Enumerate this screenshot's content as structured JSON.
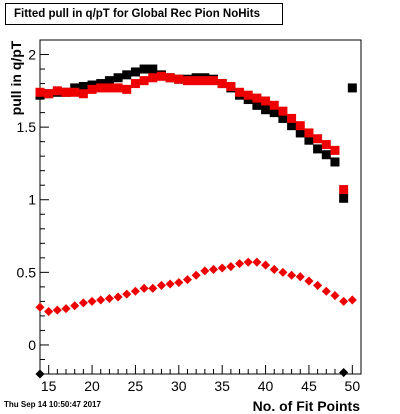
{
  "stamp": "Thu Sep 14 10:50:47 2017",
  "chart_data": {
    "type": "scatter",
    "title": "Fitted pull in q/pT  for Global Rec Pion NoHits",
    "xlabel": "No. of Fit Points",
    "ylabel": "pull in q/pT",
    "xlim": [
      14,
      51
    ],
    "ylim": [
      -0.2,
      2.1
    ],
    "x_ticks": [
      "15",
      "20",
      "25",
      "30",
      "35",
      "40",
      "45",
      "50"
    ],
    "y_ticks": [
      "0",
      "0.5",
      "1",
      "1.5",
      "2"
    ],
    "grid": false,
    "legend": "none",
    "colors": {
      "black_series": "#000000",
      "red_series": "#ee0000"
    },
    "series": [
      {
        "marker": "square",
        "color": "#000000",
        "points": [
          [
            14,
            1.72
          ],
          [
            15,
            1.73
          ],
          [
            16,
            1.74
          ],
          [
            17,
            1.74
          ],
          [
            18,
            1.77
          ],
          [
            19,
            1.78
          ],
          [
            20,
            1.79
          ],
          [
            21,
            1.8
          ],
          [
            22,
            1.82
          ],
          [
            23,
            1.84
          ],
          [
            24,
            1.86
          ],
          [
            25,
            1.88
          ],
          [
            26,
            1.9
          ],
          [
            27,
            1.9
          ],
          [
            28,
            1.86
          ],
          [
            29,
            1.84
          ],
          [
            30,
            1.83
          ],
          [
            31,
            1.83
          ],
          [
            32,
            1.84
          ],
          [
            33,
            1.84
          ],
          [
            34,
            1.83
          ],
          [
            35,
            1.8
          ],
          [
            36,
            1.77
          ],
          [
            37,
            1.72
          ],
          [
            38,
            1.69
          ],
          [
            39,
            1.65
          ],
          [
            40,
            1.62
          ],
          [
            41,
            1.6
          ],
          [
            42,
            1.56
          ],
          [
            43,
            1.51
          ],
          [
            44,
            1.46
          ],
          [
            45,
            1.41
          ],
          [
            46,
            1.35
          ],
          [
            47,
            1.31
          ],
          [
            48,
            1.26
          ],
          [
            49,
            1.01
          ],
          [
            50,
            1.77
          ]
        ]
      },
      {
        "marker": "square",
        "color": "#ee0000",
        "points": [
          [
            14,
            1.74
          ],
          [
            15,
            1.73
          ],
          [
            16,
            1.75
          ],
          [
            17,
            1.74
          ],
          [
            18,
            1.74
          ],
          [
            19,
            1.73
          ],
          [
            20,
            1.76
          ],
          [
            21,
            1.77
          ],
          [
            22,
            1.77
          ],
          [
            23,
            1.77
          ],
          [
            24,
            1.76
          ],
          [
            25,
            1.8
          ],
          [
            26,
            1.82
          ],
          [
            27,
            1.84
          ],
          [
            28,
            1.85
          ],
          [
            29,
            1.84
          ],
          [
            30,
            1.83
          ],
          [
            31,
            1.82
          ],
          [
            32,
            1.82
          ],
          [
            33,
            1.82
          ],
          [
            34,
            1.82
          ],
          [
            35,
            1.8
          ],
          [
            36,
            1.78
          ],
          [
            37,
            1.74
          ],
          [
            38,
            1.72
          ],
          [
            39,
            1.7
          ],
          [
            40,
            1.68
          ],
          [
            41,
            1.65
          ],
          [
            42,
            1.61
          ],
          [
            43,
            1.56
          ],
          [
            44,
            1.51
          ],
          [
            45,
            1.46
          ],
          [
            46,
            1.42
          ],
          [
            47,
            1.38
          ],
          [
            48,
            1.34
          ],
          [
            49,
            1.07
          ]
        ]
      },
      {
        "marker": "circle",
        "color": "#ee0000",
        "points": [
          [
            14,
            0.26
          ],
          [
            15,
            0.23
          ],
          [
            16,
            0.24
          ],
          [
            17,
            0.25
          ],
          [
            18,
            0.27
          ],
          [
            19,
            0.29
          ],
          [
            20,
            0.3
          ],
          [
            21,
            0.31
          ],
          [
            22,
            0.32
          ],
          [
            23,
            0.33
          ],
          [
            24,
            0.35
          ],
          [
            25,
            0.37
          ],
          [
            26,
            0.39
          ],
          [
            27,
            0.39
          ],
          [
            28,
            0.41
          ],
          [
            29,
            0.42
          ],
          [
            30,
            0.43
          ],
          [
            31,
            0.45
          ],
          [
            32,
            0.48
          ],
          [
            33,
            0.51
          ],
          [
            34,
            0.52
          ],
          [
            35,
            0.53
          ],
          [
            36,
            0.54
          ],
          [
            37,
            0.56
          ],
          [
            38,
            0.57
          ],
          [
            39,
            0.57
          ],
          [
            40,
            0.55
          ],
          [
            41,
            0.52
          ],
          [
            42,
            0.5
          ],
          [
            43,
            0.48
          ],
          [
            44,
            0.47
          ],
          [
            45,
            0.44
          ],
          [
            46,
            0.41
          ],
          [
            47,
            0.37
          ],
          [
            48,
            0.34
          ],
          [
            49,
            0.3
          ],
          [
            50,
            0.31
          ]
        ]
      },
      {
        "marker": "circle",
        "color": "#000000",
        "points": [
          [
            14,
            -0.2
          ],
          [
            49,
            -0.19
          ]
        ]
      }
    ]
  }
}
